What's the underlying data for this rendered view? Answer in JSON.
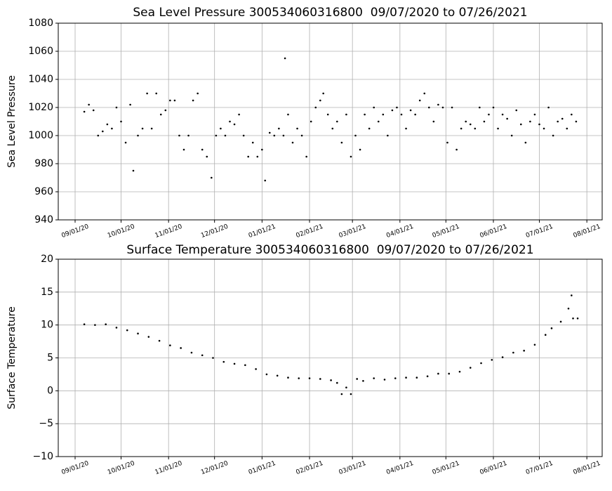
{
  "chart_data": [
    {
      "type": "scatter",
      "title": "Sea Level Pressure 300534060316800  09/07/2020 to 07/26/2021",
      "y_label": "Sea Level Pressure",
      "color": "#000000",
      "grid": true,
      "xlim": [
        "2020-08-21",
        "2021-08-11"
      ],
      "ylim": [
        940,
        1080
      ],
      "xticks": [
        {
          "value": "2020-09-01",
          "label": "09/01/20"
        },
        {
          "value": "2020-10-01",
          "label": "10/01/20"
        },
        {
          "value": "2020-11-01",
          "label": "11/01/20"
        },
        {
          "value": "2020-12-01",
          "label": "12/01/20"
        },
        {
          "value": "2021-01-01",
          "label": "01/01/21"
        },
        {
          "value": "2021-02-01",
          "label": "02/01/21"
        },
        {
          "value": "2021-03-01",
          "label": "03/01/21"
        },
        {
          "value": "2021-04-01",
          "label": "04/01/21"
        },
        {
          "value": "2021-05-01",
          "label": "05/01/21"
        },
        {
          "value": "2021-06-01",
          "label": "06/01/21"
        },
        {
          "value": "2021-07-01",
          "label": "07/01/21"
        },
        {
          "value": "2021-08-01",
          "label": "08/01/21"
        }
      ],
      "yticks": [
        940,
        960,
        980,
        1000,
        1020,
        1040,
        1060,
        1080
      ],
      "x": [
        "2020-09-07",
        "2020-09-10",
        "2020-09-13",
        "2020-09-16",
        "2020-09-19",
        "2020-09-22",
        "2020-09-25",
        "2020-09-28",
        "2020-10-01",
        "2020-10-04",
        "2020-10-07",
        "2020-10-09",
        "2020-10-12",
        "2020-10-15",
        "2020-10-18",
        "2020-10-21",
        "2020-10-24",
        "2020-10-27",
        "2020-10-30",
        "2020-11-02",
        "2020-11-05",
        "2020-11-08",
        "2020-11-11",
        "2020-11-14",
        "2020-11-17",
        "2020-11-20",
        "2020-11-23",
        "2020-11-26",
        "2020-11-29",
        "2020-12-02",
        "2020-12-05",
        "2020-12-08",
        "2020-12-11",
        "2020-12-14",
        "2020-12-17",
        "2020-12-20",
        "2020-12-23",
        "2020-12-26",
        "2020-12-29",
        "2021-01-01",
        "2021-01-03",
        "2021-01-06",
        "2021-01-09",
        "2021-01-12",
        "2021-01-15",
        "2021-01-16",
        "2021-01-18",
        "2021-01-21",
        "2021-01-24",
        "2021-01-27",
        "2021-01-30",
        "2021-02-02",
        "2021-02-05",
        "2021-02-08",
        "2021-02-10",
        "2021-02-13",
        "2021-02-16",
        "2021-02-19",
        "2021-02-22",
        "2021-02-25",
        "2021-02-28",
        "2021-03-03",
        "2021-03-06",
        "2021-03-09",
        "2021-03-12",
        "2021-03-15",
        "2021-03-18",
        "2021-03-21",
        "2021-03-24",
        "2021-03-27",
        "2021-03-30",
        "2021-04-02",
        "2021-04-05",
        "2021-04-08",
        "2021-04-11",
        "2021-04-14",
        "2021-04-17",
        "2021-04-20",
        "2021-04-23",
        "2021-04-26",
        "2021-04-29",
        "2021-05-02",
        "2021-05-05",
        "2021-05-08",
        "2021-05-11",
        "2021-05-14",
        "2021-05-17",
        "2021-05-20",
        "2021-05-23",
        "2021-05-26",
        "2021-05-29",
        "2021-06-01",
        "2021-06-04",
        "2021-06-07",
        "2021-06-10",
        "2021-06-13",
        "2021-06-16",
        "2021-06-19",
        "2021-06-22",
        "2021-06-25",
        "2021-06-28",
        "2021-07-01",
        "2021-07-04",
        "2021-07-07",
        "2021-07-10",
        "2021-07-13",
        "2021-07-16",
        "2021-07-19",
        "2021-07-22",
        "2021-07-25"
      ],
      "values": [
        1017,
        1022,
        1018,
        1000,
        1003,
        1008,
        1005,
        1020,
        1010,
        995,
        1022,
        975,
        1000,
        1005,
        1030,
        1005,
        1030,
        1015,
        1018,
        1025,
        1025,
        1000,
        990,
        1000,
        1025,
        1030,
        990,
        985,
        970,
        1000,
        1005,
        1000,
        1010,
        1008,
        1015,
        1000,
        985,
        995,
        985,
        990,
        968,
        1002,
        1000,
        1005,
        1000,
        1055,
        1015,
        995,
        1005,
        1000,
        985,
        1010,
        1020,
        1025,
        1030,
        1015,
        1005,
        1010,
        995,
        1015,
        985,
        1000,
        990,
        1015,
        1005,
        1020,
        1010,
        1015,
        1000,
        1018,
        1020,
        1015,
        1005,
        1018,
        1015,
        1025,
        1030,
        1020,
        1010,
        1022,
        1020,
        995,
        1020,
        990,
        1005,
        1010,
        1008,
        1005,
        1020,
        1010,
        1015,
        1020,
        1005,
        1015,
        1012,
        1000,
        1018,
        1008,
        995,
        1010,
        1015,
        1008,
        1005,
        1020,
        1000,
        1010,
        1012,
        1005,
        1015,
        1010
      ]
    },
    {
      "type": "scatter",
      "title": "Surface Temperature 300534060316800  09/07/2020 to 07/26/2021",
      "y_label": "Surface Temperature",
      "color": "#000000",
      "grid": true,
      "xlim": [
        "2020-08-21",
        "2021-08-11"
      ],
      "ylim": [
        -10,
        20
      ],
      "xticks": [
        {
          "value": "2020-09-01",
          "label": "09/01/20"
        },
        {
          "value": "2020-10-01",
          "label": "10/01/20"
        },
        {
          "value": "2020-11-01",
          "label": "11/01/20"
        },
        {
          "value": "2020-12-01",
          "label": "12/01/20"
        },
        {
          "value": "2021-01-01",
          "label": "01/01/21"
        },
        {
          "value": "2021-02-01",
          "label": "02/01/21"
        },
        {
          "value": "2021-03-01",
          "label": "03/01/21"
        },
        {
          "value": "2021-04-01",
          "label": "04/01/21"
        },
        {
          "value": "2021-05-01",
          "label": "05/01/21"
        },
        {
          "value": "2021-06-01",
          "label": "06/01/21"
        },
        {
          "value": "2021-07-01",
          "label": "07/01/21"
        },
        {
          "value": "2021-08-01",
          "label": "08/01/21"
        }
      ],
      "yticks": [
        {
          "value": -10,
          "label": "−10"
        },
        {
          "value": -5,
          "label": "−5"
        },
        0,
        5,
        10,
        15,
        20
      ],
      "x": [
        "2020-09-07",
        "2020-09-14",
        "2020-09-21",
        "2020-09-28",
        "2020-10-05",
        "2020-10-12",
        "2020-10-19",
        "2020-10-26",
        "2020-11-02",
        "2020-11-09",
        "2020-11-16",
        "2020-11-23",
        "2020-11-30",
        "2020-12-07",
        "2020-12-14",
        "2020-12-21",
        "2020-12-28",
        "2021-01-04",
        "2021-01-11",
        "2021-01-18",
        "2021-01-25",
        "2021-02-01",
        "2021-02-08",
        "2021-02-15",
        "2021-02-19",
        "2021-02-22",
        "2021-02-25",
        "2021-02-28",
        "2021-03-04",
        "2021-03-08",
        "2021-03-15",
        "2021-03-22",
        "2021-03-29",
        "2021-04-05",
        "2021-04-12",
        "2021-04-19",
        "2021-04-26",
        "2021-05-03",
        "2021-05-10",
        "2021-05-17",
        "2021-05-24",
        "2021-05-31",
        "2021-06-07",
        "2021-06-14",
        "2021-06-21",
        "2021-06-28",
        "2021-07-05",
        "2021-07-09",
        "2021-07-15",
        "2021-07-20",
        "2021-07-22",
        "2021-07-23",
        "2021-07-26"
      ],
      "values": [
        10.1,
        10.0,
        10.1,
        9.6,
        9.2,
        8.7,
        8.2,
        7.6,
        6.9,
        6.5,
        5.8,
        5.4,
        5.0,
        4.4,
        4.1,
        3.9,
        3.3,
        2.5,
        2.3,
        2.0,
        1.9,
        1.9,
        1.8,
        1.6,
        1.2,
        -0.5,
        0.5,
        -0.5,
        1.8,
        1.5,
        1.9,
        1.7,
        1.9,
        2.0,
        2.0,
        2.2,
        2.6,
        2.6,
        2.9,
        3.5,
        4.2,
        4.7,
        5.1,
        5.8,
        6.1,
        7.0,
        8.5,
        9.5,
        10.5,
        12.5,
        14.5,
        11,
        11
      ]
    }
  ]
}
